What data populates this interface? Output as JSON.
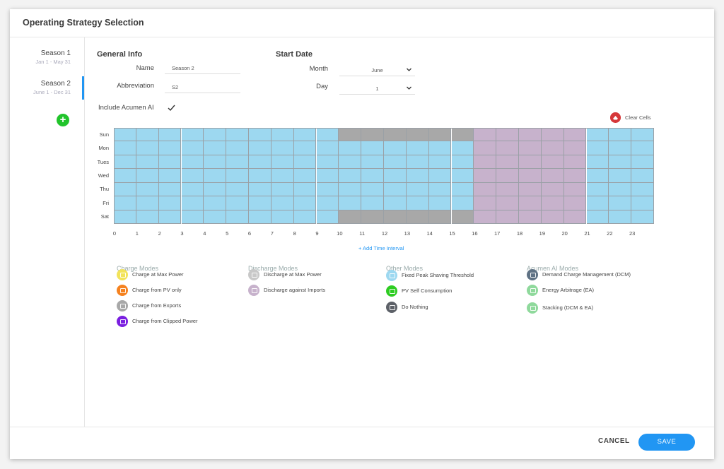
{
  "dialog": {
    "title": "Operating Strategy Selection"
  },
  "sidebar": {
    "seasons": [
      {
        "label": "Season 1",
        "range": "Jan 1 - May 31"
      },
      {
        "label": "Season 2",
        "range": "June 1 - Dec 31",
        "selected": true
      }
    ]
  },
  "general_info": {
    "title": "General Info",
    "name_label": "Name",
    "name_value": "Season 2",
    "abbrev_label": "Abbreviation",
    "abbrev_value": "S2",
    "acumen_label": "Include Acumen AI",
    "acumen_checked": true
  },
  "start_date": {
    "title": "Start Date",
    "month_label": "Month",
    "month_value": "June",
    "day_label": "Day",
    "day_value": "1"
  },
  "clear_cells": "Clear Cells",
  "schedule": {
    "days": [
      "Sun",
      "Mon",
      "Tues",
      "Wed",
      "Thu",
      "Fri",
      "Sat"
    ],
    "hours": [
      "0",
      "1",
      "2",
      "3",
      "4",
      "5",
      "6",
      "7",
      "8",
      "9",
      "10",
      "11",
      "12",
      "13",
      "14",
      "15",
      "16",
      "17",
      "18",
      "19",
      "20",
      "21",
      "22",
      "23"
    ],
    "colors": {
      "B": "#9dd8f0",
      "G": "#a8a8a8",
      "P": "#c7b2cc"
    },
    "rows": [
      "BBBBBBBBBBGGGGGGPPPPPBBB",
      "BBBBBBBBBBBBBBBBPPPPPBBB",
      "BBBBBBBBBBBBBBBBPPPPPBBB",
      "BBBBBBBBBBBBBBBBPPPPPBBB",
      "BBBBBBBBBBBBBBBBPPPPPBBB",
      "BBBBBBBBBBBBBBBBPPPPPBBB",
      "BBBBBBBBBBGGGGGGPPPPPBBB"
    ],
    "add_interval": "+ Add Time Interval"
  },
  "legend": [
    {
      "heading": "Charge Modes",
      "items": [
        {
          "label": "Charge at Max Power",
          "color": "#f2e35a"
        },
        {
          "label": "Charge from PV only",
          "color": "#f58220"
        },
        {
          "label": "Charge from Exports",
          "color": "#a8a8a8"
        },
        {
          "label": "Charge from Clipped Power",
          "color": "#7a1fe0"
        }
      ]
    },
    {
      "heading": "Discharge Modes",
      "items": [
        {
          "label": "Discharge at Max Power",
          "color": "#c8c8c8"
        },
        {
          "label": "Discharge against Imports",
          "color": "#c7b2cc"
        }
      ]
    },
    {
      "heading": "Other Modes",
      "items": [
        {
          "label": "Fixed Peak Shaving Threshold",
          "color": "#9dd8f0"
        },
        {
          "label": "PV Self Consumption",
          "color": "#2ecc22"
        },
        {
          "label": "Do Nothing",
          "color": "#5d6168"
        }
      ]
    },
    {
      "heading": "Acumen AI Modes",
      "items": [
        {
          "label": "Demand Charge Management (DCM)",
          "color": "#5f7284"
        },
        {
          "label": "Energy Arbitrage (EA)",
          "color": "#8fd99c"
        },
        {
          "label": "Stacking (DCM & EA)",
          "color": "#8fd99c"
        }
      ]
    }
  ],
  "footer": {
    "cancel": "CANCEL",
    "save": "SAVE"
  }
}
